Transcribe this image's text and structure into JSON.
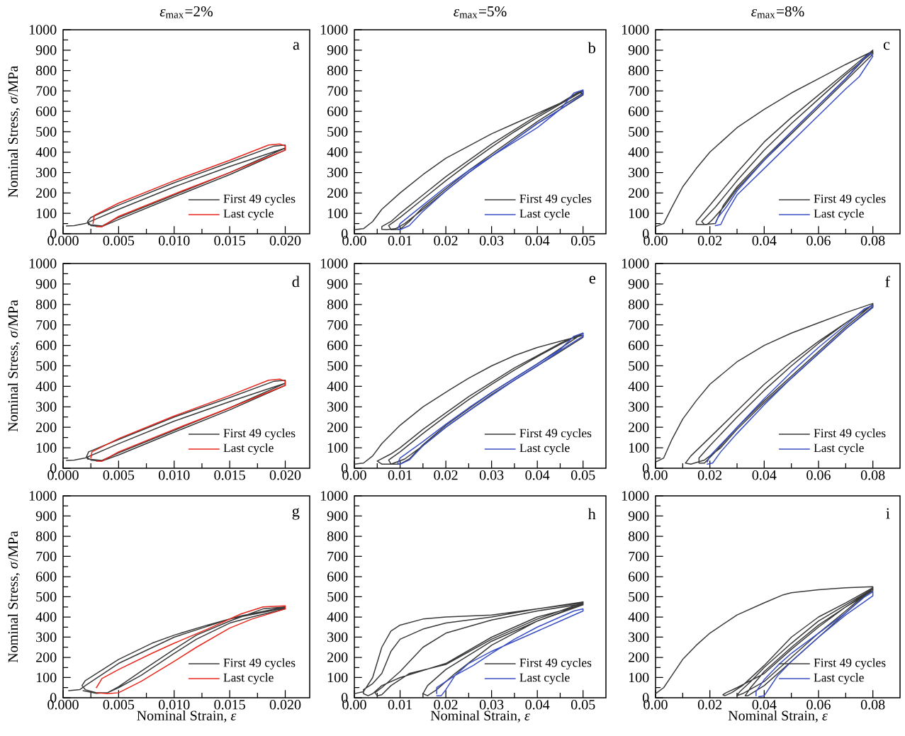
{
  "chart_data": [
    {
      "type": "line",
      "title": "*ε*$_{max}$=2%",
      "ylabel": "Nominal Stress, *σ*/MPa",
      "annotations": [
        "a"
      ],
      "legend": "bottom right",
      "line_style": "solid",
      "xlim": [
        0,
        0.0222
      ],
      "xticks": [
        {
          "value": 0,
          "label": "0.000"
        },
        {
          "value": 0.005,
          "label": "0.005"
        },
        {
          "value": 0.01,
          "label": "0.010"
        },
        {
          "value": 0.015,
          "label": "0.015"
        },
        {
          "value": 0.02,
          "label": "0.020"
        }
      ],
      "ylim": [
        0,
        1000
      ],
      "yticks": [
        0,
        100,
        200,
        300,
        400,
        500,
        600,
        700,
        800,
        900,
        1000
      ],
      "series": [
        {
          "name": "First 49 cycles",
          "color": "#3a3a3a",
          "x": [
            0.0003,
            0.001,
            0.002,
            0.005,
            0.01,
            0.015,
            0.02,
            0.02,
            0.015,
            0.0095,
            0.005,
            0.0035,
            0.0025,
            0.0022,
            0.0025,
            0.005,
            0.01,
            0.015,
            0.019,
            0.02,
            0.02,
            0.015,
            0.011,
            0.005,
            0.0035,
            0.0023,
            0.0022
          ],
          "values": [
            38,
            40,
            50,
            120,
            230,
            330,
            420,
            410,
            290,
            170,
            70,
            35,
            40,
            60,
            80,
            140,
            250,
            350,
            430,
            435,
            420,
            300,
            212,
            80,
            38,
            45,
            55
          ]
        },
        {
          "name": "Last cycle",
          "color": "#e8261c",
          "x": [
            0.0027,
            0.0028,
            0.005,
            0.01,
            0.015,
            0.0185,
            0.0195,
            0.02,
            0.02,
            0.015,
            0.01,
            0.005,
            0.0035,
            0.003
          ],
          "values": [
            50,
            90,
            150,
            260,
            360,
            435,
            440,
            430,
            410,
            300,
            195,
            85,
            35,
            35
          ]
        }
      ]
    },
    {
      "type": "line",
      "title": "*ε*$_{max}$=5%",
      "annotations": [
        "b"
      ],
      "legend": "bottom right",
      "line_style": "solid",
      "xlim": [
        0,
        0.055
      ],
      "xticks": [
        {
          "value": 0,
          "label": "0.00"
        },
        {
          "value": 0.01,
          "label": "0.01"
        },
        {
          "value": 0.02,
          "label": "0.02"
        },
        {
          "value": 0.03,
          "label": "0.03"
        },
        {
          "value": 0.04,
          "label": "0.04"
        },
        {
          "value": 0.05,
          "label": "0.05"
        }
      ],
      "ylim": [
        0,
        1000
      ],
      "yticks": [
        0,
        100,
        200,
        300,
        400,
        500,
        600,
        700,
        800,
        900,
        1000
      ],
      "series": [
        {
          "name": "First 49 cycles",
          "color": "#3a3a3a",
          "x": [
            0,
            0.002,
            0.004,
            0.006,
            0.01,
            0.015,
            0.02,
            0.025,
            0.03,
            0.035,
            0.04,
            0.045,
            0.049,
            0.05,
            0.05,
            0.044,
            0.04,
            0.035,
            0.03,
            0.025,
            0.02,
            0.015,
            0.011,
            0.009,
            0.007,
            0.006,
            0.006,
            0.008,
            0.01,
            0.015,
            0.02,
            0.025,
            0.03,
            0.035,
            0.04,
            0.045,
            0.049,
            0.05,
            0.05,
            0.046,
            0.04,
            0.035,
            0.03,
            0.025,
            0.02,
            0.015,
            0.012,
            0.01,
            0.008,
            0.0075,
            0.01,
            0.015,
            0.02,
            0.025,
            0.03,
            0.035,
            0.04,
            0.045,
            0.05
          ],
          "values": [
            20,
            25,
            60,
            120,
            200,
            290,
            370,
            430,
            490,
            540,
            590,
            640,
            690,
            690,
            680,
            595,
            540,
            460,
            380,
            300,
            210,
            120,
            50,
            25,
            20,
            22,
            35,
            60,
            100,
            190,
            280,
            360,
            440,
            510,
            580,
            640,
            695,
            700,
            690,
            635,
            550,
            470,
            390,
            310,
            220,
            130,
            60,
            22,
            20,
            40,
            80,
            170,
            260,
            345,
            425,
            500,
            570,
            635,
            700
          ]
        },
        {
          "name": "Last cycle",
          "color": "#3a4fc4",
          "x": [
            0.0095,
            0.01,
            0.015,
            0.02,
            0.025,
            0.03,
            0.035,
            0.04,
            0.045,
            0.048,
            0.05,
            0.05,
            0.045,
            0.04,
            0.035,
            0.03,
            0.025,
            0.02,
            0.015,
            0.012,
            0.01,
            0.0095
          ],
          "values": [
            25,
            50,
            140,
            230,
            310,
            380,
            450,
            520,
            610,
            690,
            705,
            685,
            610,
            540,
            460,
            380,
            300,
            210,
            110,
            40,
            20,
            22
          ]
        }
      ]
    },
    {
      "type": "line",
      "title": "*ε*$_{max}$=8%",
      "annotations": [
        "c"
      ],
      "legend": "bottom right",
      "line_style": "solid",
      "xlim": [
        0,
        0.09
      ],
      "xticks": [
        {
          "value": 0,
          "label": "0.00"
        },
        {
          "value": 0.02,
          "label": "0.02"
        },
        {
          "value": 0.04,
          "label": "0.04"
        },
        {
          "value": 0.06,
          "label": "0.06"
        },
        {
          "value": 0.08,
          "label": "0.08"
        }
      ],
      "ylim": [
        0,
        1000
      ],
      "yticks": [
        0,
        100,
        200,
        300,
        400,
        500,
        600,
        700,
        800,
        900,
        1000
      ],
      "series": [
        {
          "name": "First 49 cycles",
          "color": "#3a3a3a",
          "x": [
            0,
            0.003,
            0.006,
            0.01,
            0.015,
            0.02,
            0.03,
            0.04,
            0.05,
            0.06,
            0.07,
            0.08,
            0.08,
            0.07,
            0.06,
            0.05,
            0.04,
            0.03,
            0.025,
            0.021,
            0.019,
            0.015,
            0.015,
            0.02,
            0.025,
            0.03,
            0.04,
            0.05,
            0.06,
            0.07,
            0.08,
            0.07,
            0.06,
            0.05,
            0.04,
            0.03,
            0.025,
            0.022,
            0.018,
            0.017,
            0.022,
            0.03,
            0.04,
            0.05,
            0.06,
            0.07,
            0.08
          ],
          "values": [
            35,
            50,
            130,
            230,
            320,
            400,
            520,
            610,
            690,
            760,
            830,
            895,
            880,
            750,
            620,
            490,
            360,
            220,
            130,
            70,
            45,
            45,
            60,
            140,
            220,
            300,
            450,
            570,
            680,
            790,
            900,
            760,
            630,
            500,
            370,
            230,
            140,
            50,
            45,
            60,
            130,
            260,
            410,
            540,
            660,
            780,
            890
          ]
        },
        {
          "name": "Last cycle",
          "color": "#3a4fc4",
          "x": [
            0.022,
            0.023,
            0.026,
            0.03,
            0.04,
            0.05,
            0.06,
            0.07,
            0.076,
            0.079,
            0.08,
            0.075,
            0.07,
            0.06,
            0.05,
            0.04,
            0.03,
            0.026,
            0.024,
            0.022
          ],
          "values": [
            50,
            80,
            130,
            210,
            360,
            500,
            630,
            760,
            850,
            885,
            870,
            770,
            710,
            580,
            450,
            320,
            190,
            100,
            45,
            40
          ]
        }
      ]
    },
    {
      "type": "line",
      "ylabel": "Nominal Stress, *σ*/MPa",
      "annotations": [
        "d"
      ],
      "legend": "bottom right",
      "line_style": "solid",
      "xlim": [
        0,
        0.0222
      ],
      "xticks": [
        {
          "value": 0,
          "label": "0.000"
        },
        {
          "value": 0.005,
          "label": "0.005"
        },
        {
          "value": 0.01,
          "label": "0.010"
        },
        {
          "value": 0.015,
          "label": "0.015"
        },
        {
          "value": 0.02,
          "label": "0.020"
        }
      ],
      "ylim": [
        0,
        1000
      ],
      "yticks": [
        0,
        100,
        200,
        300,
        400,
        500,
        600,
        700,
        800,
        900,
        1000
      ],
      "series": [
        {
          "name": "First 49 cycles",
          "color": "#3a3a3a",
          "x": [
            0.0003,
            0.001,
            0.002,
            0.005,
            0.01,
            0.015,
            0.02,
            0.02,
            0.015,
            0.0095,
            0.005,
            0.0035,
            0.0025,
            0.0021,
            0.0023,
            0.005,
            0.01,
            0.015,
            0.019,
            0.02,
            0.02,
            0.015,
            0.011,
            0.005,
            0.0035,
            0.0022,
            0.0021
          ],
          "values": [
            38,
            40,
            50,
            120,
            230,
            325,
            415,
            405,
            285,
            165,
            65,
            35,
            40,
            55,
            80,
            140,
            250,
            345,
            425,
            430,
            415,
            295,
            207,
            75,
            38,
            45,
            55
          ]
        },
        {
          "name": "Last cycle",
          "color": "#e8261c",
          "x": [
            0.0025,
            0.0026,
            0.005,
            0.01,
            0.015,
            0.0185,
            0.0195,
            0.02,
            0.02,
            0.015,
            0.01,
            0.005,
            0.0035,
            0.003
          ],
          "values": [
            50,
            80,
            145,
            255,
            355,
            430,
            435,
            425,
            405,
            295,
            190,
            80,
            35,
            35
          ]
        }
      ]
    },
    {
      "type": "line",
      "annotations": [
        "e"
      ],
      "legend": "bottom right",
      "line_style": "solid",
      "xlim": [
        0,
        0.055
      ],
      "xticks": [
        {
          "value": 0,
          "label": "0.00"
        },
        {
          "value": 0.01,
          "label": "0.01"
        },
        {
          "value": 0.02,
          "label": "0.02"
        },
        {
          "value": 0.03,
          "label": "0.03"
        },
        {
          "value": 0.04,
          "label": "0.04"
        },
        {
          "value": 0.05,
          "label": "0.05"
        }
      ],
      "ylim": [
        0,
        1000
      ],
      "yticks": [
        0,
        100,
        200,
        300,
        400,
        500,
        600,
        700,
        800,
        900,
        1000
      ],
      "series": [
        {
          "name": "First 49 cycles",
          "color": "#3a3a3a",
          "x": [
            0,
            0.002,
            0.004,
            0.006,
            0.01,
            0.015,
            0.021,
            0.025,
            0.03,
            0.035,
            0.04,
            0.045,
            0.05,
            0.05,
            0.044,
            0.04,
            0.035,
            0.03,
            0.025,
            0.02,
            0.015,
            0.011,
            0.008,
            0.006,
            0.005,
            0.008,
            0.01,
            0.015,
            0.02,
            0.025,
            0.03,
            0.035,
            0.04,
            0.045,
            0.05,
            0.046,
            0.04,
            0.035,
            0.03,
            0.025,
            0.02,
            0.015,
            0.012,
            0.01,
            0.008,
            0.0075,
            0.01,
            0.015,
            0.02,
            0.025,
            0.03,
            0.035,
            0.04,
            0.045,
            0.05
          ],
          "values": [
            20,
            25,
            60,
            120,
            210,
            300,
            385,
            440,
            500,
            550,
            590,
            620,
            650,
            640,
            555,
            500,
            430,
            360,
            280,
            200,
            110,
            45,
            20,
            20,
            35,
            70,
            100,
            190,
            270,
            350,
            420,
            490,
            550,
            610,
            660,
            600,
            510,
            440,
            370,
            290,
            210,
            115,
            45,
            20,
            20,
            40,
            80,
            170,
            255,
            335,
            410,
            480,
            545,
            605,
            660
          ]
        },
        {
          "name": "Last cycle",
          "color": "#3a4fc4",
          "x": [
            0.0095,
            0.01,
            0.015,
            0.02,
            0.025,
            0.03,
            0.035,
            0.04,
            0.045,
            0.048,
            0.05,
            0.05,
            0.045,
            0.04,
            0.035,
            0.03,
            0.025,
            0.02,
            0.015,
            0.012,
            0.01,
            0.0095
          ],
          "values": [
            25,
            50,
            130,
            215,
            295,
            370,
            440,
            510,
            580,
            645,
            660,
            645,
            575,
            500,
            430,
            355,
            280,
            200,
            110,
            40,
            20,
            22
          ]
        }
      ]
    },
    {
      "type": "line",
      "annotations": [
        "f"
      ],
      "legend": "bottom right",
      "line_style": "solid",
      "xlim": [
        0,
        0.09
      ],
      "xticks": [
        {
          "value": 0,
          "label": "0.00"
        },
        {
          "value": 0.02,
          "label": "0.02"
        },
        {
          "value": 0.04,
          "label": "0.04"
        },
        {
          "value": 0.06,
          "label": "0.06"
        },
        {
          "value": 0.08,
          "label": "0.08"
        }
      ],
      "ylim": [
        0,
        1000
      ],
      "yticks": [
        0,
        100,
        200,
        300,
        400,
        500,
        600,
        700,
        800,
        900,
        1000
      ],
      "series": [
        {
          "name": "First 49 cycles",
          "color": "#3a3a3a",
          "x": [
            0,
            0.003,
            0.006,
            0.01,
            0.015,
            0.02,
            0.03,
            0.04,
            0.05,
            0.06,
            0.07,
            0.08,
            0.08,
            0.07,
            0.06,
            0.05,
            0.04,
            0.03,
            0.024,
            0.018,
            0.013,
            0.011,
            0.013,
            0.02,
            0.03,
            0.04,
            0.05,
            0.06,
            0.07,
            0.08,
            0.07,
            0.06,
            0.05,
            0.04,
            0.03,
            0.022,
            0.018,
            0.016,
            0.016,
            0.02,
            0.03,
            0.04,
            0.05,
            0.06,
            0.07,
            0.08
          ],
          "values": [
            30,
            50,
            140,
            240,
            330,
            410,
            520,
            600,
            660,
            710,
            760,
            805,
            790,
            680,
            560,
            440,
            320,
            190,
            100,
            40,
            20,
            25,
            60,
            150,
            280,
            410,
            520,
            620,
            710,
            800,
            690,
            570,
            450,
            330,
            200,
            80,
            25,
            25,
            50,
            110,
            250,
            380,
            500,
            610,
            710,
            800
          ]
        },
        {
          "name": "Last cycle",
          "color": "#3a4fc4",
          "x": [
            0.019,
            0.02,
            0.025,
            0.03,
            0.04,
            0.05,
            0.06,
            0.07,
            0.077,
            0.08,
            0.08,
            0.07,
            0.06,
            0.05,
            0.04,
            0.03,
            0.024,
            0.021,
            0.019
          ],
          "values": [
            30,
            60,
            130,
            200,
            340,
            470,
            590,
            700,
            780,
            795,
            785,
            680,
            560,
            440,
            310,
            170,
            80,
            25,
            20
          ]
        }
      ]
    },
    {
      "type": "line",
      "ylabel": "Nominal Stress, *σ*/MPa",
      "xlabel": "Nominal Strain, *ε*",
      "annotations": [
        "g"
      ],
      "legend": "bottom right",
      "line_style": "solid",
      "xlim": [
        0,
        0.0222
      ],
      "xticks": [
        {
          "value": 0,
          "label": "0.000"
        },
        {
          "value": 0.005,
          "label": "0.005"
        },
        {
          "value": 0.01,
          "label": "0.010"
        },
        {
          "value": 0.015,
          "label": "0.015"
        },
        {
          "value": 0.02,
          "label": "0.020"
        }
      ],
      "ylim": [
        0,
        1000
      ],
      "yticks": [
        0,
        100,
        200,
        300,
        400,
        500,
        600,
        700,
        800,
        900,
        1000
      ],
      "series": [
        {
          "name": "First 49 cycles",
          "color": "#3a3a3a",
          "x": [
            0.0005,
            0.0015,
            0.002,
            0.005,
            0.01,
            0.015,
            0.02,
            0.02,
            0.017,
            0.015,
            0.012,
            0.01,
            0.007,
            0.005,
            0.004,
            0.003,
            0.002,
            0.0017,
            0.002,
            0.005,
            0.008,
            0.01,
            0.013,
            0.016,
            0.02,
            0.018,
            0.015,
            0.012,
            0.01,
            0.007,
            0.005,
            0.004,
            0.003,
            0.0018
          ],
          "values": [
            35,
            40,
            60,
            170,
            300,
            390,
            445,
            440,
            400,
            370,
            290,
            220,
            110,
            50,
            25,
            25,
            40,
            60,
            85,
            190,
            270,
            310,
            360,
            405,
            450,
            440,
            380,
            310,
            240,
            130,
            55,
            25,
            22,
            35
          ]
        },
        {
          "name": "Last cycle",
          "color": "#e8261c",
          "x": [
            0.003,
            0.0035,
            0.005,
            0.008,
            0.01,
            0.013,
            0.016,
            0.018,
            0.02,
            0.02,
            0.017,
            0.015,
            0.012,
            0.01,
            0.007,
            0.005,
            0.004,
            0.003
          ],
          "values": [
            50,
            95,
            140,
            220,
            270,
            340,
            415,
            450,
            455,
            440,
            390,
            345,
            250,
            180,
            80,
            25,
            20,
            25
          ]
        }
      ]
    },
    {
      "type": "line",
      "xlabel": "Nominal Strain, *ε*",
      "annotations": [
        "h"
      ],
      "legend": "bottom right",
      "line_style": "solid",
      "xlim": [
        0,
        0.055
      ],
      "xticks": [
        {
          "value": 0,
          "label": "0.00"
        },
        {
          "value": 0.01,
          "label": "0.01"
        },
        {
          "value": 0.02,
          "label": "0.02"
        },
        {
          "value": 0.03,
          "label": "0.03"
        },
        {
          "value": 0.04,
          "label": "0.04"
        },
        {
          "value": 0.05,
          "label": "0.05"
        }
      ],
      "ylim": [
        0,
        1000
      ],
      "yticks": [
        0,
        100,
        200,
        300,
        400,
        500,
        600,
        700,
        800,
        900,
        1000
      ],
      "series": [
        {
          "name": "First 49 cycles",
          "color": "#3a3a3a",
          "x": [
            0,
            0.002,
            0.004,
            0.006,
            0.008,
            0.01,
            0.015,
            0.02,
            0.03,
            0.04,
            0.05,
            0.05,
            0.04,
            0.03,
            0.02,
            0.01,
            0.006,
            0.004,
            0.003,
            0.002,
            0.002,
            0.004,
            0.006,
            0.008,
            0.01,
            0.015,
            0.02,
            0.03,
            0.04,
            0.05,
            0.04,
            0.03,
            0.02,
            0.012,
            0.008,
            0.006,
            0.005,
            0.0045,
            0.006,
            0.01,
            0.015,
            0.02,
            0.03,
            0.04,
            0.05,
            0.04,
            0.03,
            0.02,
            0.016,
            0.015,
            0.016,
            0.018,
            0.022,
            0.03,
            0.04,
            0.05
          ],
          "values": [
            20,
            30,
            100,
            250,
            330,
            360,
            390,
            400,
            410,
            440,
            475,
            460,
            400,
            300,
            170,
            100,
            60,
            20,
            10,
            20,
            40,
            70,
            120,
            230,
            290,
            340,
            370,
            400,
            440,
            470,
            390,
            290,
            165,
            120,
            60,
            15,
            10,
            25,
            50,
            130,
            250,
            320,
            385,
            430,
            465,
            380,
            280,
            140,
            60,
            20,
            10,
            40,
            120,
            260,
            380,
            460
          ]
        },
        {
          "name": "Last cycle",
          "color": "#3a4fc4",
          "x": [
            0.018,
            0.018,
            0.022,
            0.026,
            0.03,
            0.035,
            0.04,
            0.045,
            0.048,
            0.05,
            0.05,
            0.045,
            0.04,
            0.035,
            0.03,
            0.025,
            0.022,
            0.02,
            0.019,
            0.018
          ],
          "values": [
            20,
            50,
            110,
            160,
            220,
            290,
            350,
            400,
            430,
            440,
            430,
            380,
            330,
            280,
            230,
            170,
            110,
            40,
            10,
            10
          ]
        }
      ]
    },
    {
      "type": "line",
      "xlabel": "Nominal Strain, *ε*",
      "annotations": [
        "i"
      ],
      "legend": "bottom right",
      "line_style": "solid",
      "xlim": [
        0,
        0.09
      ],
      "xticks": [
        {
          "value": 0,
          "label": "0.00"
        },
        {
          "value": 0.02,
          "label": "0.02"
        },
        {
          "value": 0.04,
          "label": "0.04"
        },
        {
          "value": 0.06,
          "label": "0.06"
        },
        {
          "value": 0.08,
          "label": "0.08"
        }
      ],
      "ylim": [
        0,
        1000
      ],
      "yticks": [
        0,
        100,
        200,
        300,
        400,
        500,
        600,
        700,
        800,
        900,
        1000
      ],
      "series": [
        {
          "name": "First 49 cycles",
          "color": "#3a3a3a",
          "x": [
            0,
            0.003,
            0.006,
            0.01,
            0.015,
            0.02,
            0.03,
            0.04,
            0.047,
            0.05,
            0.06,
            0.07,
            0.08,
            0.08,
            0.07,
            0.06,
            0.05,
            0.04,
            0.03,
            0.026,
            0.0248,
            0.0255,
            0.028,
            0.032,
            0.04,
            0.05,
            0.06,
            0.07,
            0.08,
            0.07,
            0.06,
            0.05,
            0.04,
            0.032,
            0.03,
            0.031,
            0.035,
            0.04,
            0.05,
            0.06,
            0.07,
            0.08,
            0.07,
            0.06,
            0.05,
            0.04,
            0.034,
            0.033,
            0.035,
            0.04,
            0.05,
            0.06,
            0.07,
            0.08
          ],
          "values": [
            20,
            50,
            110,
            190,
            260,
            320,
            410,
            470,
            510,
            520,
            535,
            545,
            550,
            530,
            450,
            350,
            240,
            120,
            50,
            25,
            15,
            10,
            25,
            60,
            160,
            300,
            400,
            470,
            545,
            430,
            320,
            200,
            80,
            20,
            10,
            30,
            80,
            150,
            270,
            380,
            460,
            540,
            420,
            300,
            180,
            60,
            10,
            10,
            50,
            130,
            250,
            360,
            450,
            540
          ]
        },
        {
          "name": "Last cycle",
          "color": "#3a4fc4",
          "x": [
            0.037,
            0.037,
            0.04,
            0.045,
            0.05,
            0.06,
            0.07,
            0.077,
            0.08,
            0.08,
            0.07,
            0.06,
            0.05,
            0.045,
            0.042,
            0.04,
            0.038
          ],
          "values": [
            10,
            30,
            90,
            160,
            220,
            320,
            420,
            500,
            525,
            505,
            410,
            300,
            180,
            110,
            50,
            10,
            5
          ]
        }
      ]
    }
  ]
}
